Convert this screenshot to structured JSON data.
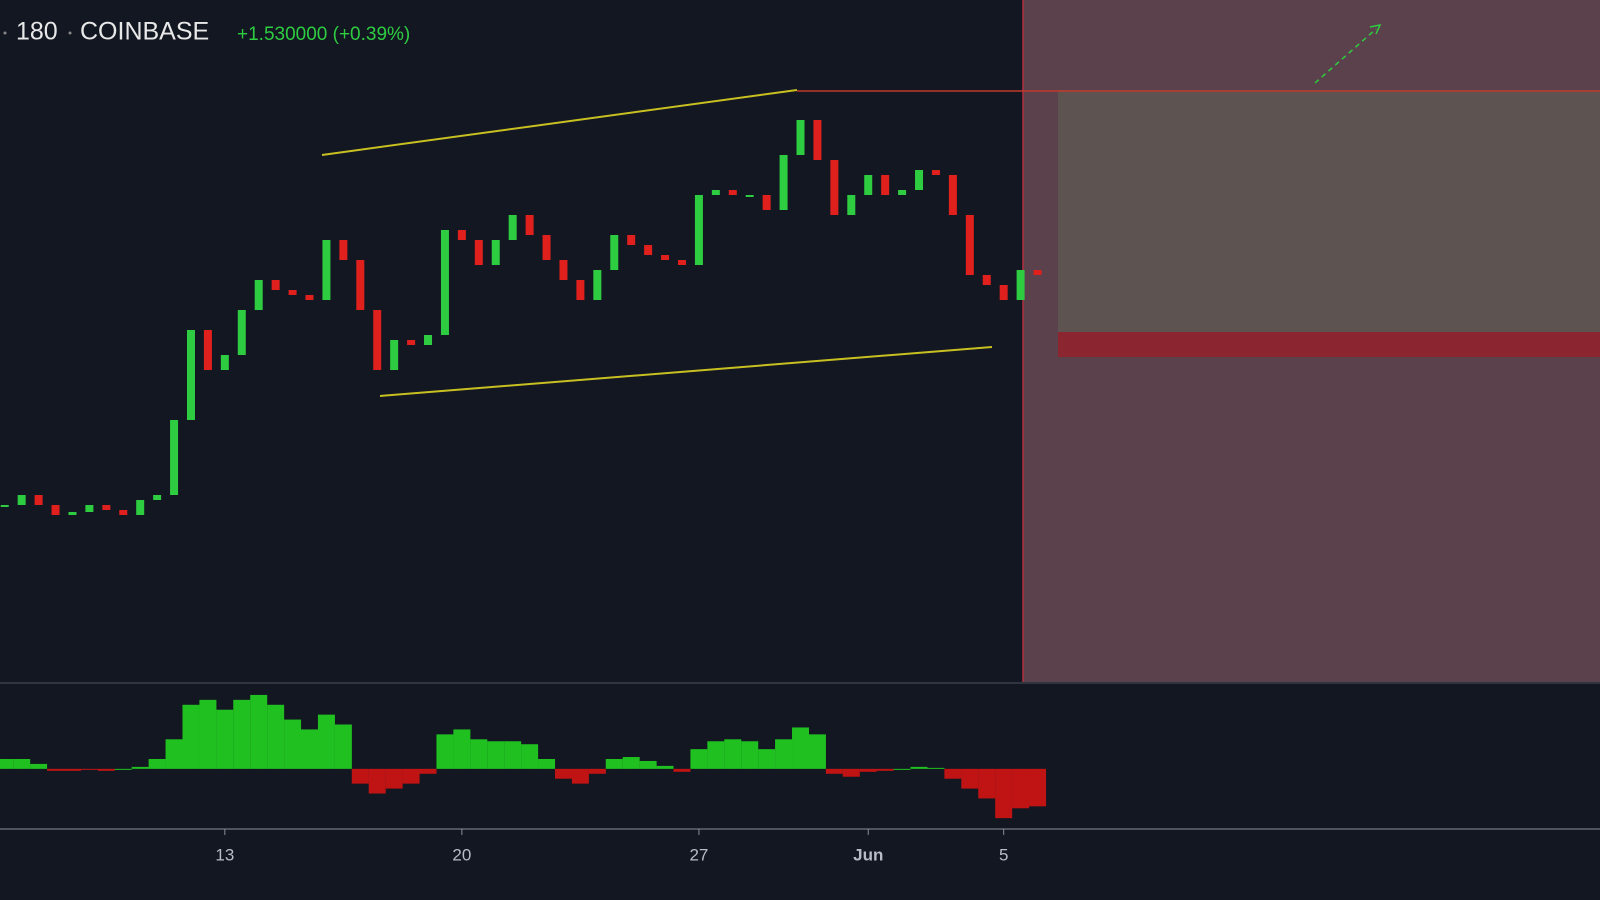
{
  "chart_data": [
    {
      "type": "candlestick",
      "interval": "180",
      "exchange": "COINBASE",
      "change": "+1.530000 (+0.39%)",
      "x": [
        6.5,
        7,
        7.5,
        8,
        8.5,
        9,
        9.5,
        10,
        10.5,
        11,
        11.5,
        12,
        12.5,
        13,
        13.5,
        14,
        14.5,
        15,
        15.5,
        16,
        16.5,
        17,
        17.5,
        18,
        18.5,
        19,
        19.5,
        20,
        20.5,
        21,
        21.5,
        22,
        22.5,
        23,
        23.5,
        24,
        24.5,
        25,
        25.5,
        26,
        26.5,
        27,
        27.5,
        28,
        28.5,
        29,
        29.5,
        30,
        30.5,
        31,
        31.5,
        32,
        32.5,
        33,
        33.5,
        34,
        34.5,
        35,
        35.5,
        36,
        36.5,
        37
      ],
      "values": [
        380.5,
        381,
        380.5,
        380,
        380.15,
        380.5,
        380.25,
        380,
        380.75,
        381,
        384.75,
        389.25,
        387.25,
        388,
        390.25,
        391.75,
        391.25,
        391,
        390.75,
        393.75,
        392.75,
        390.25,
        387.25,
        388.75,
        388.5,
        389,
        394.25,
        393.75,
        392.5,
        393.75,
        395,
        394,
        392.75,
        391.75,
        390.75,
        392.25,
        394,
        393.5,
        393,
        392.75,
        392.5,
        396,
        396.25,
        396,
        396,
        395.25,
        398,
        399.75,
        397.75,
        395,
        396,
        397,
        396,
        396.25,
        397.25,
        397,
        395,
        392,
        391.5,
        390.75,
        392.25,
        392
      ],
      "up_color": "#2ecc40",
      "down_color": "#e0201c",
      "xlim": [
        6.36,
        53.61
      ],
      "ylim": [
        371.75,
        405.75
      ],
      "xticks": [
        13,
        20,
        27,
        {
          "value": 32,
          "label": "Jun"
        },
        {
          "value": 36,
          "label": "5"
        }
      ]
    },
    {
      "type": "bar",
      "x": [
        6.5,
        7,
        7.5,
        8,
        8.5,
        9,
        9.5,
        10,
        10.5,
        11,
        11.5,
        12,
        12.5,
        13,
        13.5,
        14,
        14.5,
        15,
        15.5,
        16,
        16.5,
        17,
        17.5,
        18,
        18.5,
        19,
        19.5,
        20,
        20.5,
        21,
        21.5,
        22,
        22.5,
        23,
        23.5,
        24,
        24.5,
        25,
        25.5,
        26,
        26.5,
        27,
        27.5,
        28,
        28.5,
        29,
        29.5,
        30,
        30.5,
        31,
        31.5,
        32,
        32.5,
        33,
        33.5,
        34,
        34.5,
        35,
        35.5,
        36,
        36.5,
        37
      ],
      "values": [
        10,
        10,
        5,
        -2,
        -2,
        -1,
        -2,
        0,
        2,
        10,
        30,
        65,
        70,
        60,
        70,
        75,
        65,
        50,
        40,
        55,
        45,
        -15,
        -25,
        -20,
        -15,
        -5,
        35,
        40,
        30,
        28,
        28,
        25,
        10,
        -10,
        -15,
        -5,
        10,
        12,
        8,
        3,
        -3,
        20,
        28,
        30,
        28,
        20,
        30,
        42,
        35,
        -5,
        -8,
        -3,
        -2,
        0,
        2,
        1,
        -10,
        -20,
        -30,
        -50,
        -40,
        -38
      ],
      "up_color": "#1fc01f",
      "down_color": "#c01414",
      "xlim": [
        6.36,
        53.61
      ],
      "ylim": [
        -60,
        80
      ]
    }
  ]
}
